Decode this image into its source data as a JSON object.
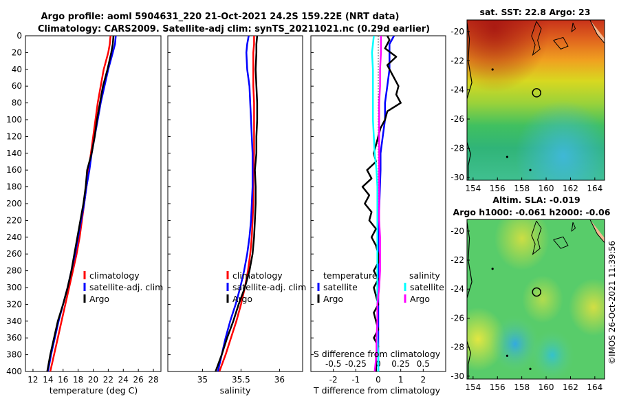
{
  "header": {
    "title_line1": "Argo profile: aoml 5904631_220 21-Oct-2021 24.2S 159.22E (NRT data)",
    "title_line2": "Climatology: CARS2009. Satellite-adj clim: synTS_20211021.nc (0.29d earlier)"
  },
  "colors": {
    "climatology": "#ff0000",
    "satellite_adj": "#0000ff",
    "argo": "#000000",
    "sal_satellite": "#00ffff",
    "sal_argo": "#ff00ff"
  },
  "chart_data": [
    {
      "type": "line",
      "panel": "temperature",
      "xlabel": "temperature (deg C)",
      "ylabel": "",
      "xlim": [
        11,
        29
      ],
      "ylim": [
        400,
        0
      ],
      "xticks": [
        12,
        14,
        16,
        18,
        20,
        22,
        24,
        26,
        28
      ],
      "yticks": [
        0,
        20,
        40,
        60,
        80,
        100,
        120,
        140,
        160,
        180,
        200,
        220,
        240,
        260,
        280,
        300,
        320,
        340,
        360,
        380,
        400
      ],
      "legend": [
        "climatology",
        "satellite-adj. clim",
        "Argo"
      ],
      "series": [
        {
          "name": "climatology",
          "color": "#ff0000",
          "depth": [
            0,
            10,
            20,
            40,
            60,
            80,
            100,
            120,
            140,
            160,
            180,
            200,
            220,
            240,
            260,
            280,
            300,
            320,
            340,
            360,
            380,
            400
          ],
          "values": [
            22.3,
            22.2,
            22.0,
            21.4,
            21.0,
            20.6,
            20.3,
            20.0,
            19.7,
            19.4,
            19.1,
            18.8,
            18.5,
            18.2,
            17.8,
            17.3,
            16.8,
            16.3,
            15.8,
            15.3,
            14.8,
            14.3
          ]
        },
        {
          "name": "satellite-adj. clim",
          "color": "#0000ff",
          "depth": [
            0,
            10,
            20,
            40,
            60,
            80,
            100,
            120,
            140,
            160,
            180,
            200,
            220,
            240,
            260,
            280,
            300,
            320,
            340,
            360,
            380,
            400
          ],
          "values": [
            23.0,
            22.9,
            22.6,
            22.0,
            21.5,
            21.0,
            20.6,
            20.2,
            19.8,
            19.5,
            19.1,
            18.8,
            18.4,
            18.0,
            17.6,
            17.1,
            16.6,
            16.0,
            15.4,
            14.9,
            14.4,
            14.0
          ]
        },
        {
          "name": "Argo",
          "color": "#000000",
          "depth": [
            0,
            10,
            20,
            40,
            60,
            80,
            100,
            120,
            140,
            160,
            180,
            200,
            220,
            240,
            260,
            280,
            300,
            320,
            340,
            360,
            380,
            400
          ],
          "values": [
            22.7,
            22.6,
            22.4,
            21.9,
            21.3,
            20.9,
            20.5,
            20.2,
            19.8,
            19.2,
            19.0,
            18.7,
            18.3,
            17.9,
            17.5,
            17.1,
            16.6,
            16.0,
            15.3,
            14.8,
            14.3,
            13.9
          ]
        }
      ]
    },
    {
      "type": "line",
      "panel": "salinity",
      "xlabel": "salinity",
      "ylabel": "",
      "xlim": [
        34.55,
        36.3
      ],
      "ylim": [
        400,
        0
      ],
      "xticks": [
        35,
        35.5,
        36
      ],
      "legend": [
        "climatology",
        "satellite-adj. clim",
        "Argo"
      ],
      "series": [
        {
          "name": "climatology",
          "color": "#ff0000",
          "depth": [
            0,
            10,
            20,
            40,
            60,
            80,
            100,
            120,
            140,
            160,
            180,
            200,
            220,
            240,
            260,
            280,
            300,
            320,
            340,
            360,
            380,
            400
          ],
          "values": [
            35.67,
            35.67,
            35.66,
            35.66,
            35.66,
            35.67,
            35.67,
            35.67,
            35.67,
            35.66,
            35.66,
            35.66,
            35.65,
            35.64,
            35.62,
            35.59,
            35.55,
            35.5,
            35.44,
            35.37,
            35.3,
            35.22
          ]
        },
        {
          "name": "satellite-adj. clim",
          "color": "#0000ff",
          "depth": [
            0,
            10,
            20,
            40,
            60,
            80,
            100,
            120,
            140,
            160,
            180,
            200,
            220,
            240,
            260,
            280,
            300,
            320,
            340,
            360,
            380,
            400
          ],
          "values": [
            35.6,
            35.58,
            35.57,
            35.58,
            35.61,
            35.62,
            35.63,
            35.64,
            35.65,
            35.65,
            35.65,
            35.64,
            35.63,
            35.61,
            35.58,
            35.54,
            35.49,
            35.43,
            35.36,
            35.3,
            35.25,
            35.2
          ]
        },
        {
          "name": "Argo",
          "color": "#000000",
          "depth": [
            0,
            10,
            20,
            40,
            60,
            80,
            100,
            120,
            140,
            160,
            180,
            200,
            220,
            240,
            260,
            280,
            300,
            320,
            340,
            360,
            380,
            400
          ],
          "values": [
            35.71,
            35.7,
            35.7,
            35.69,
            35.7,
            35.71,
            35.71,
            35.7,
            35.7,
            35.68,
            35.69,
            35.69,
            35.68,
            35.67,
            35.65,
            35.61,
            35.55,
            35.47,
            35.4,
            35.32,
            35.25,
            35.17
          ]
        }
      ]
    },
    {
      "type": "line",
      "panel": "difference",
      "xlabel": "T difference from climatology",
      "top_axis_label": "S difference from climatology",
      "xlim": [
        -3,
        3
      ],
      "ylim": [
        400,
        0
      ],
      "xticks": [
        -2,
        -1,
        0,
        1,
        2
      ],
      "top_xticks": [
        -0.5,
        -0.25,
        0,
        0.25,
        0.5
      ],
      "legend_left_title": "temperature",
      "legend_right_title": "salinity",
      "legend_labels": [
        "satellite",
        "Argo",
        "satellite",
        "Argo"
      ],
      "series": [
        {
          "name": "temperature satellite",
          "color": "#0000ff",
          "units": "T",
          "depth": [
            0,
            5,
            10,
            20,
            40,
            60,
            80,
            100,
            120,
            140,
            160,
            200,
            240,
            260,
            280,
            300,
            340,
            380,
            400
          ],
          "values": [
            0.7,
            0.6,
            0.5,
            0.5,
            0.5,
            0.4,
            0.3,
            0.3,
            0.2,
            0.1,
            0.1,
            0.05,
            0.0,
            0.0,
            0.0,
            0.0,
            0.0,
            0.0,
            0.0
          ]
        },
        {
          "name": "temperature Argo",
          "color": "#000000",
          "units": "T",
          "depth": [
            0,
            5,
            15,
            25,
            35,
            45,
            60,
            70,
            80,
            90,
            100,
            110,
            120,
            130,
            140,
            150,
            160,
            170,
            180,
            190,
            200,
            210,
            220,
            230,
            240,
            250,
            260,
            270,
            280,
            290,
            300,
            310,
            320,
            330,
            340,
            350,
            360,
            370,
            380,
            390,
            400
          ],
          "values": [
            0.4,
            0.5,
            0.3,
            0.8,
            0.4,
            0.6,
            0.9,
            0.8,
            1.0,
            0.4,
            0.3,
            0.1,
            0.0,
            -0.1,
            -0.2,
            -0.1,
            -0.5,
            -0.3,
            -0.7,
            -0.4,
            -0.6,
            -0.3,
            -0.4,
            -0.1,
            -0.3,
            -0.1,
            0.0,
            0.0,
            -0.2,
            0.0,
            -0.2,
            -0.1,
            0.0,
            -0.2,
            -0.1,
            0.0,
            -0.2,
            0.0,
            -0.1,
            -0.1,
            -0.1
          ]
        },
        {
          "name": "salinity satellite",
          "color": "#00ffff",
          "units": "S",
          "depth": [
            0,
            10,
            20,
            40,
            60,
            80,
            100,
            120,
            140,
            160,
            180,
            200,
            220,
            240,
            260,
            280,
            300,
            320,
            340,
            360,
            380,
            400
          ],
          "values": [
            -0.05,
            -0.06,
            -0.07,
            -0.06,
            -0.06,
            -0.06,
            -0.06,
            -0.05,
            -0.04,
            -0.02,
            -0.01,
            -0.01,
            -0.01,
            -0.01,
            -0.01,
            -0.01,
            -0.01,
            -0.01,
            -0.01,
            -0.01,
            0.0,
            0.0
          ]
        },
        {
          "name": "salinity Argo",
          "color": "#ff00ff",
          "units": "S",
          "depth": [
            0,
            10,
            20,
            40,
            60,
            80,
            100,
            120,
            140,
            160,
            180,
            200,
            220,
            240,
            260,
            280,
            300,
            320,
            340,
            360,
            380,
            400
          ],
          "values": [
            0.03,
            0.03,
            0.03,
            0.02,
            0.02,
            0.01,
            0.01,
            0.01,
            0.01,
            0.01,
            0.01,
            0.01,
            0.01,
            0.02,
            0.02,
            0.02,
            0.01,
            -0.01,
            -0.01,
            -0.02,
            -0.02,
            -0.04
          ]
        }
      ]
    },
    {
      "type": "heatmap",
      "panel": "sst_map",
      "title": "sat. SST: 22.8 Argo: 23",
      "xlim": [
        153.5,
        164.8
      ],
      "ylim": [
        -30.2,
        -19.2
      ],
      "xticks": [
        154,
        156,
        158,
        160,
        162,
        164
      ],
      "yticks": [
        -20,
        -22,
        -24,
        -26,
        -28,
        -30
      ],
      "marker": {
        "lon": 159.22,
        "lat": -24.2
      }
    },
    {
      "type": "heatmap",
      "panel": "sla_map",
      "title_line1": "Altim. SLA: -0.019",
      "title_line2": "Argo h1000: -0.061 h2000: -0.06",
      "xlim": [
        153.5,
        164.8
      ],
      "ylim": [
        -30.2,
        -19.2
      ],
      "xticks": [
        154,
        156,
        158,
        160,
        162,
        164
      ],
      "yticks": [
        -20,
        -22,
        -24,
        -26,
        -28,
        -30
      ],
      "marker": {
        "lon": 159.22,
        "lat": -24.2
      }
    }
  ],
  "credit": "©IMOS 26-Oct-2021 11:39:56"
}
